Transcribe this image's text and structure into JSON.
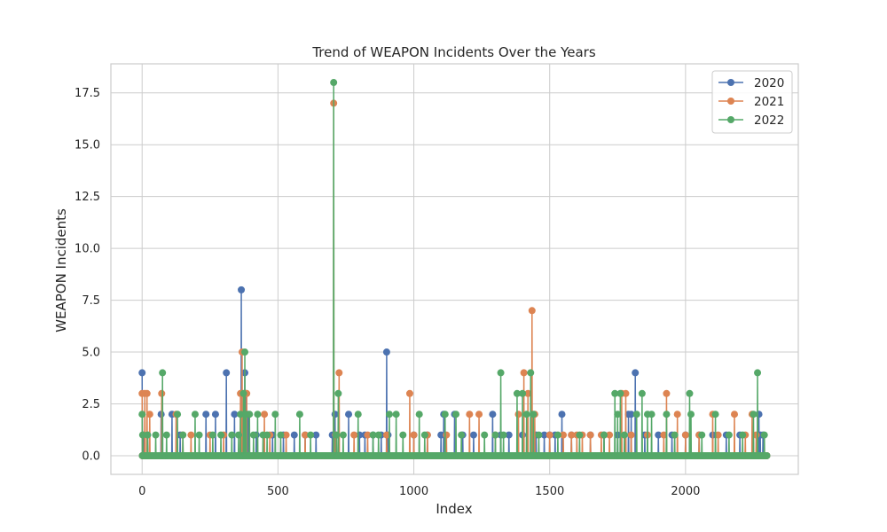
{
  "chart_data": {
    "type": "line",
    "title": "Trend of WEAPON Incidents Over the Years",
    "xlabel": "Index",
    "ylabel": "WEAPON Incidents",
    "xlim": [
      -115,
      2415
    ],
    "ylim": [
      -0.9,
      18.9
    ],
    "xticks": [
      0,
      500,
      1000,
      1500,
      2000
    ],
    "xtick_labels": [
      "0",
      "500",
      "1000",
      "1500",
      "2000"
    ],
    "yticks": [
      0.0,
      2.5,
      5.0,
      7.5,
      10.0,
      12.5,
      15.0,
      17.5
    ],
    "ytick_labels": [
      "0.0",
      "2.5",
      "5.0",
      "7.5",
      "10.0",
      "12.5",
      "15.0",
      "17.5"
    ],
    "grid": true,
    "legend_position": "top-right",
    "index_count": 2300,
    "series": [
      {
        "name": "2020",
        "color": "#4c72b0",
        "nonzero": [
          [
            0,
            4
          ],
          [
            5,
            1
          ],
          [
            20,
            1
          ],
          [
            70,
            2
          ],
          [
            110,
            2
          ],
          [
            140,
            1
          ],
          [
            235,
            2
          ],
          [
            270,
            2
          ],
          [
            310,
            4
          ],
          [
            340,
            2
          ],
          [
            365,
            8
          ],
          [
            372,
            2
          ],
          [
            378,
            4
          ],
          [
            382,
            3
          ],
          [
            390,
            2
          ],
          [
            420,
            1
          ],
          [
            480,
            1
          ],
          [
            520,
            1
          ],
          [
            560,
            1
          ],
          [
            600,
            1
          ],
          [
            640,
            1
          ],
          [
            700,
            1
          ],
          [
            710,
            2
          ],
          [
            760,
            2
          ],
          [
            800,
            1
          ],
          [
            820,
            1
          ],
          [
            850,
            1
          ],
          [
            880,
            1
          ],
          [
            900,
            5
          ],
          [
            905,
            1
          ],
          [
            1000,
            1
          ],
          [
            1050,
            1
          ],
          [
            1100,
            1
          ],
          [
            1110,
            2
          ],
          [
            1150,
            2
          ],
          [
            1180,
            1
          ],
          [
            1220,
            1
          ],
          [
            1290,
            2
          ],
          [
            1320,
            1
          ],
          [
            1350,
            1
          ],
          [
            1400,
            1
          ],
          [
            1450,
            1
          ],
          [
            1480,
            1
          ],
          [
            1500,
            1
          ],
          [
            1520,
            1
          ],
          [
            1545,
            2
          ],
          [
            1580,
            1
          ],
          [
            1650,
            1
          ],
          [
            1700,
            1
          ],
          [
            1750,
            1
          ],
          [
            1790,
            2
          ],
          [
            1800,
            2
          ],
          [
            1815,
            4
          ],
          [
            1850,
            1
          ],
          [
            1900,
            1
          ],
          [
            1950,
            1
          ],
          [
            2000,
            1
          ],
          [
            2050,
            1
          ],
          [
            2100,
            1
          ],
          [
            2150,
            1
          ],
          [
            2200,
            1
          ],
          [
            2270,
            2
          ],
          [
            2275,
            1
          ],
          [
            2285,
            1
          ]
        ]
      },
      {
        "name": "2021",
        "color": "#dd8452",
        "nonzero": [
          [
            0,
            3
          ],
          [
            10,
            3
          ],
          [
            18,
            3
          ],
          [
            28,
            2
          ],
          [
            72,
            3
          ],
          [
            125,
            2
          ],
          [
            150,
            1
          ],
          [
            180,
            1
          ],
          [
            250,
            1
          ],
          [
            300,
            1
          ],
          [
            362,
            3
          ],
          [
            368,
            5
          ],
          [
            374,
            2
          ],
          [
            385,
            3
          ],
          [
            450,
            2
          ],
          [
            470,
            1
          ],
          [
            530,
            1
          ],
          [
            600,
            1
          ],
          [
            705,
            17
          ],
          [
            712,
            1
          ],
          [
            725,
            4
          ],
          [
            780,
            1
          ],
          [
            830,
            1
          ],
          [
            900,
            1
          ],
          [
            985,
            3
          ],
          [
            1000,
            1
          ],
          [
            1050,
            1
          ],
          [
            1120,
            1
          ],
          [
            1205,
            2
          ],
          [
            1240,
            2
          ],
          [
            1300,
            1
          ],
          [
            1385,
            2
          ],
          [
            1405,
            4
          ],
          [
            1420,
            3
          ],
          [
            1435,
            7
          ],
          [
            1445,
            2
          ],
          [
            1500,
            1
          ],
          [
            1550,
            1
          ],
          [
            1580,
            1
          ],
          [
            1600,
            1
          ],
          [
            1620,
            1
          ],
          [
            1650,
            1
          ],
          [
            1690,
            1
          ],
          [
            1720,
            1
          ],
          [
            1765,
            3
          ],
          [
            1780,
            3
          ],
          [
            1800,
            1
          ],
          [
            1860,
            1
          ],
          [
            1920,
            1
          ],
          [
            1930,
            3
          ],
          [
            1970,
            2
          ],
          [
            2000,
            1
          ],
          [
            2050,
            1
          ],
          [
            2100,
            2
          ],
          [
            2120,
            1
          ],
          [
            2180,
            2
          ],
          [
            2220,
            1
          ],
          [
            2245,
            2
          ],
          [
            2260,
            1
          ]
        ]
      },
      {
        "name": "2022",
        "color": "#55a868",
        "nonzero": [
          [
            0,
            2
          ],
          [
            2,
            1
          ],
          [
            20,
            1
          ],
          [
            50,
            1
          ],
          [
            75,
            4
          ],
          [
            90,
            1
          ],
          [
            130,
            2
          ],
          [
            150,
            1
          ],
          [
            195,
            2
          ],
          [
            210,
            1
          ],
          [
            260,
            1
          ],
          [
            290,
            1
          ],
          [
            330,
            1
          ],
          [
            355,
            1
          ],
          [
            362,
            2
          ],
          [
            373,
            3
          ],
          [
            378,
            5
          ],
          [
            383,
            2
          ],
          [
            395,
            2
          ],
          [
            410,
            1
          ],
          [
            425,
            2
          ],
          [
            445,
            1
          ],
          [
            460,
            1
          ],
          [
            490,
            2
          ],
          [
            510,
            1
          ],
          [
            580,
            2
          ],
          [
            620,
            1
          ],
          [
            705,
            18
          ],
          [
            715,
            1
          ],
          [
            722,
            3
          ],
          [
            740,
            1
          ],
          [
            795,
            2
          ],
          [
            850,
            1
          ],
          [
            870,
            1
          ],
          [
            910,
            2
          ],
          [
            935,
            2
          ],
          [
            960,
            1
          ],
          [
            1020,
            2
          ],
          [
            1040,
            1
          ],
          [
            1115,
            2
          ],
          [
            1155,
            2
          ],
          [
            1175,
            1
          ],
          [
            1260,
            1
          ],
          [
            1300,
            1
          ],
          [
            1320,
            4
          ],
          [
            1330,
            1
          ],
          [
            1380,
            3
          ],
          [
            1400,
            3
          ],
          [
            1415,
            2
          ],
          [
            1430,
            4
          ],
          [
            1440,
            2
          ],
          [
            1460,
            1
          ],
          [
            1530,
            1
          ],
          [
            1610,
            1
          ],
          [
            1700,
            1
          ],
          [
            1740,
            3
          ],
          [
            1750,
            2
          ],
          [
            1760,
            3
          ],
          [
            1775,
            1
          ],
          [
            1820,
            2
          ],
          [
            1840,
            3
          ],
          [
            1860,
            2
          ],
          [
            1875,
            2
          ],
          [
            1930,
            2
          ],
          [
            1960,
            1
          ],
          [
            2015,
            3
          ],
          [
            2020,
            2
          ],
          [
            2060,
            1
          ],
          [
            2110,
            2
          ],
          [
            2160,
            1
          ],
          [
            2210,
            1
          ],
          [
            2250,
            2
          ],
          [
            2265,
            4
          ],
          [
            2290,
            1
          ]
        ]
      }
    ]
  }
}
